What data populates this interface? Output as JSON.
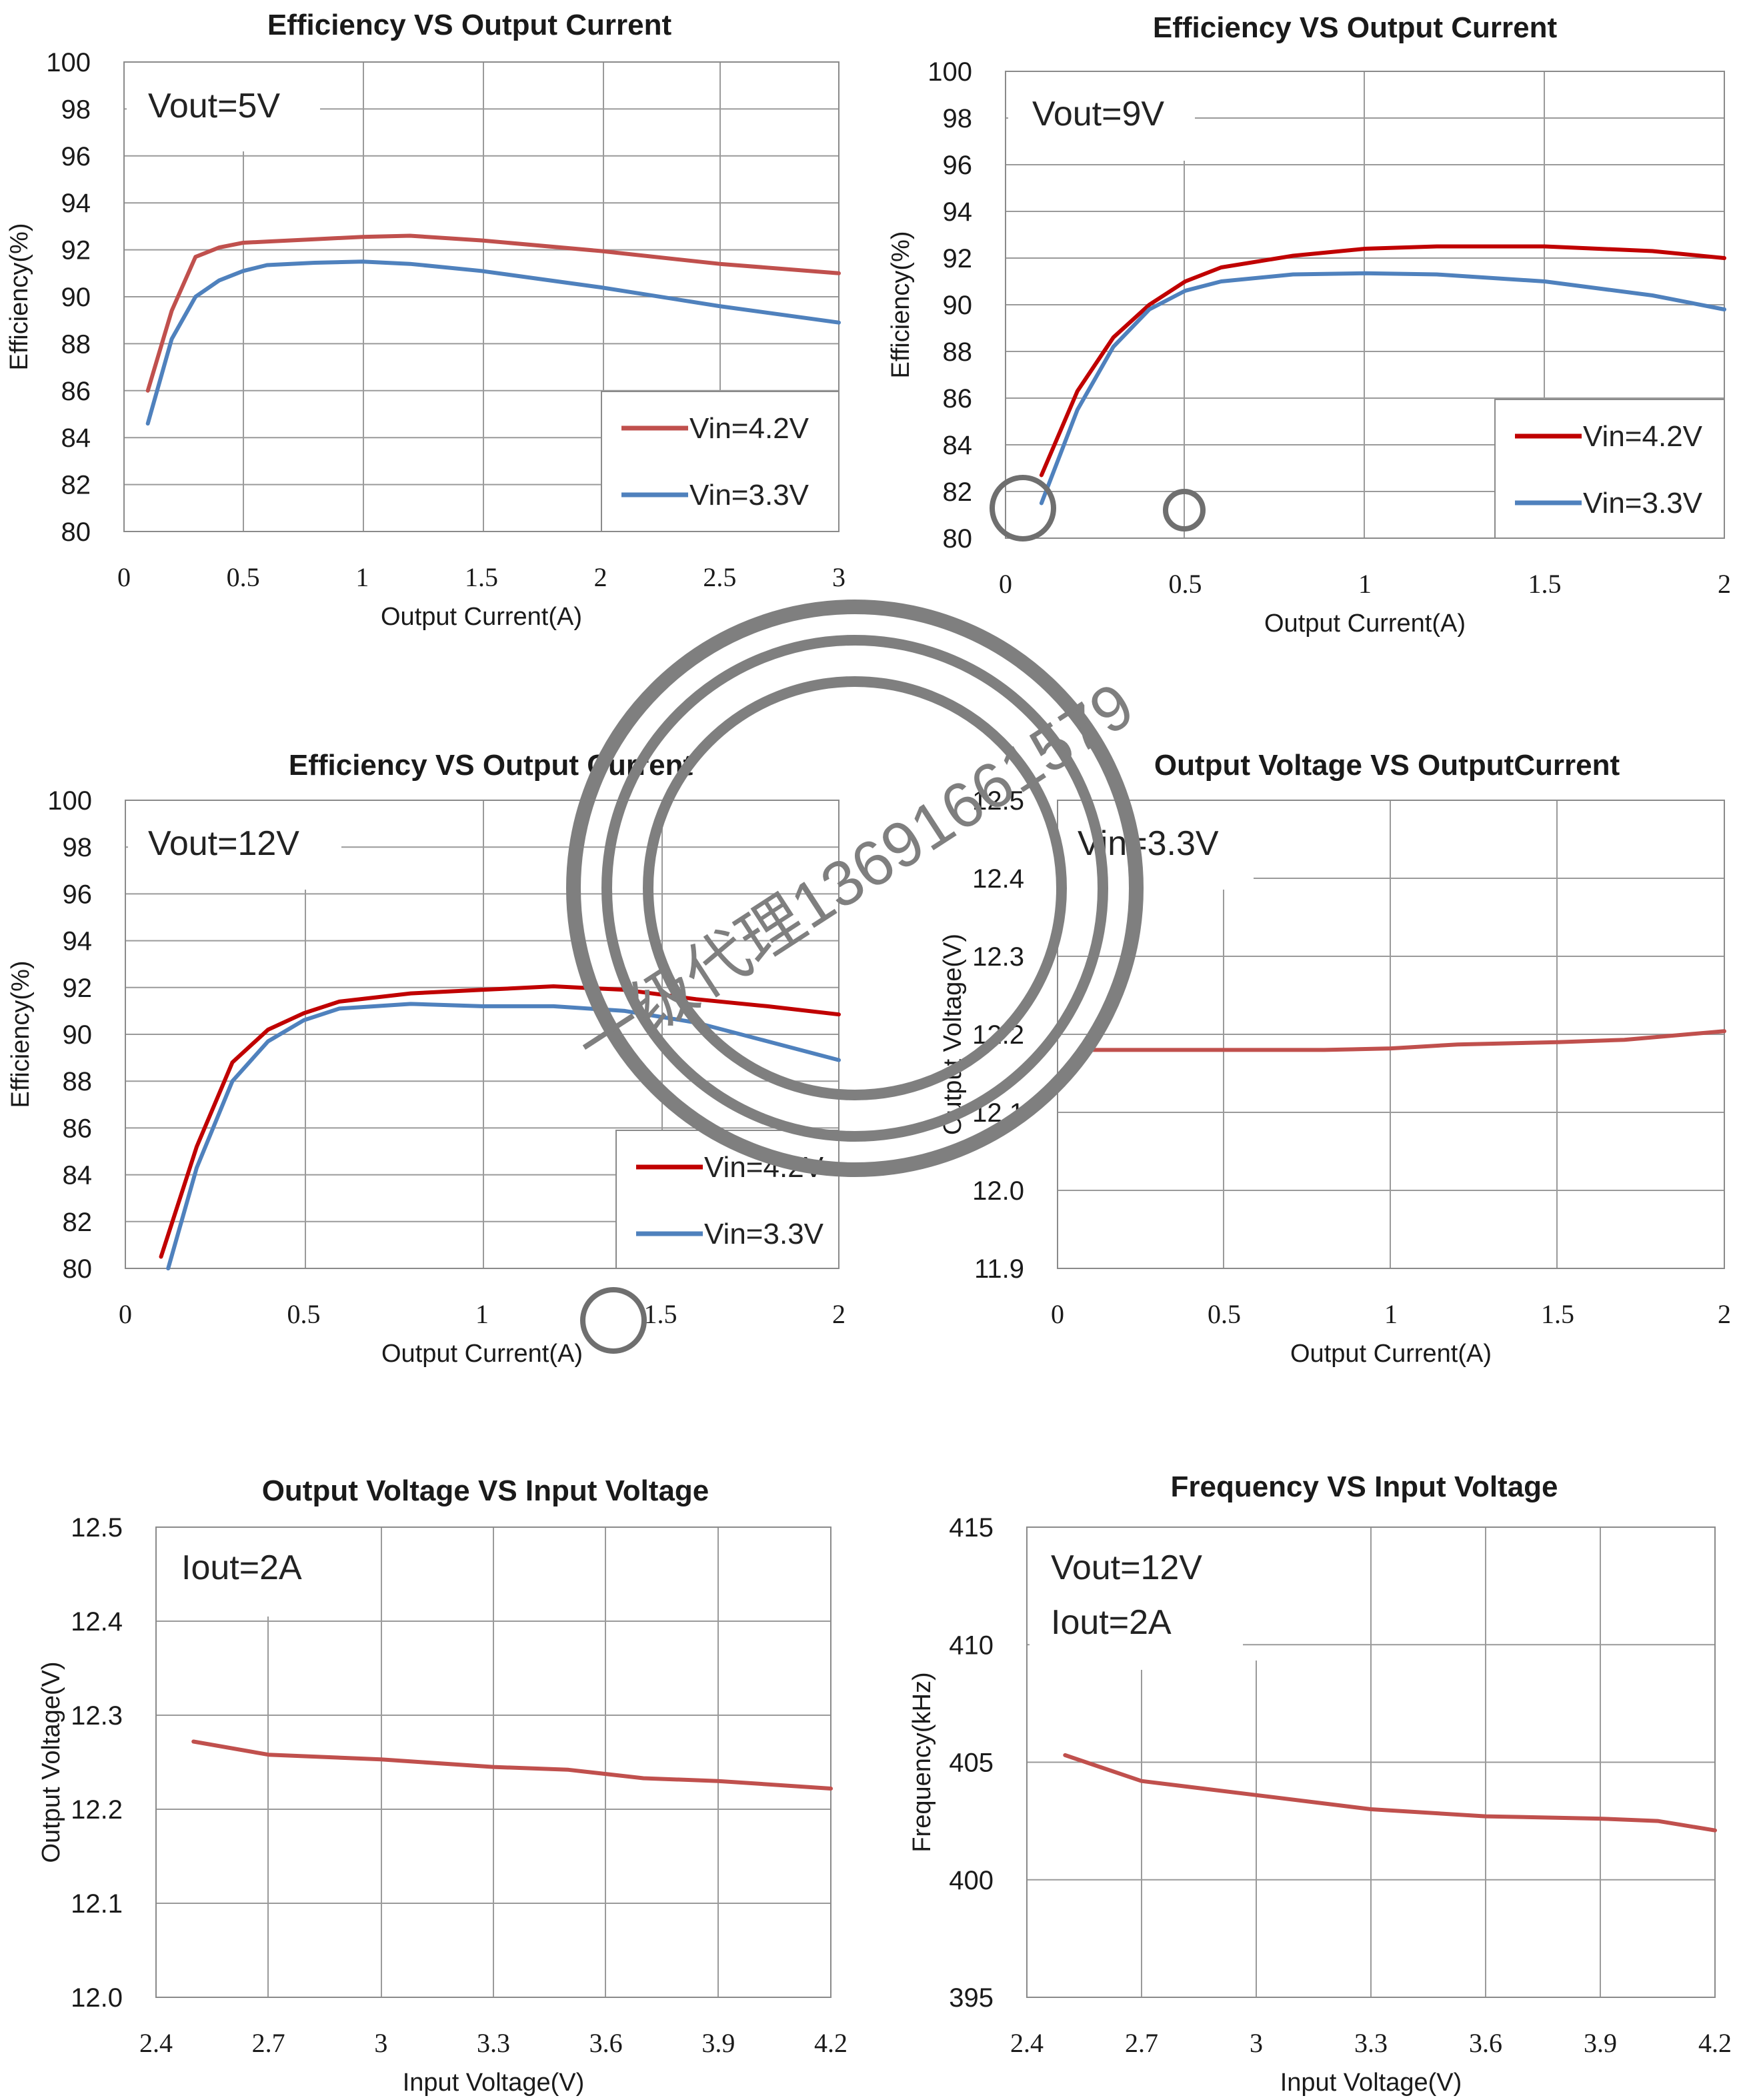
{
  "chart_data": [
    {
      "type": "line",
      "title": "Efficiency VS Output Current",
      "xlabel": "Output Current(A)",
      "ylabel": "Efficiency(%)",
      "xlim": [
        0,
        3
      ],
      "ylim": [
        80,
        100
      ],
      "xticks": [
        "0",
        "0.5",
        "1",
        "1.5",
        "2",
        "2.5",
        "3"
      ],
      "yticks": [
        "80",
        "82",
        "84",
        "86",
        "88",
        "90",
        "92",
        "94",
        "96",
        "98",
        "100"
      ],
      "annotation": [
        "Vout=5V"
      ],
      "legend_position": "bottom-right",
      "grid": true,
      "series": [
        {
          "name": "Vin=4.2V",
          "color": "#c0504d",
          "x": [
            0.1,
            0.2,
            0.3,
            0.4,
            0.5,
            0.6,
            0.8,
            1.0,
            1.2,
            1.5,
            2.0,
            2.5,
            3.0
          ],
          "y": [
            86.0,
            89.4,
            91.7,
            92.1,
            92.3,
            92.35,
            92.45,
            92.55,
            92.6,
            92.4,
            91.95,
            91.4,
            91.0
          ]
        },
        {
          "name": "Vin=3.3V",
          "color": "#4f81bd",
          "x": [
            0.1,
            0.2,
            0.3,
            0.4,
            0.5,
            0.6,
            0.8,
            1.0,
            1.2,
            1.5,
            2.0,
            2.5,
            3.0
          ],
          "y": [
            84.6,
            88.2,
            90.0,
            90.7,
            91.1,
            91.35,
            91.45,
            91.5,
            91.4,
            91.1,
            90.4,
            89.6,
            88.9
          ]
        }
      ]
    },
    {
      "type": "line",
      "title": "Efficiency VS Output Current",
      "xlabel": "Output Current(A)",
      "ylabel": "Efficiency(%)",
      "xlim": [
        0,
        2
      ],
      "ylim": [
        80,
        100
      ],
      "xticks": [
        "0",
        "0.5",
        "1",
        "1.5",
        "2"
      ],
      "yticks": [
        "80",
        "82",
        "84",
        "86",
        "88",
        "90",
        "92",
        "94",
        "96",
        "98",
        "100"
      ],
      "annotation": [
        "Vout=9V"
      ],
      "legend_position": "bottom-right",
      "grid": true,
      "series": [
        {
          "name": "Vin=4.2V",
          "color": "#c00000",
          "x": [
            0.1,
            0.2,
            0.3,
            0.4,
            0.5,
            0.6,
            0.8,
            1.0,
            1.2,
            1.5,
            1.8,
            2.0
          ],
          "y": [
            82.7,
            86.3,
            88.6,
            90.0,
            91.0,
            91.6,
            92.1,
            92.4,
            92.5,
            92.5,
            92.3,
            92.0
          ]
        },
        {
          "name": "Vin=3.3V",
          "color": "#4f81bd",
          "x": [
            0.1,
            0.2,
            0.3,
            0.4,
            0.5,
            0.6,
            0.8,
            1.0,
            1.2,
            1.5,
            1.8,
            2.0
          ],
          "y": [
            81.5,
            85.5,
            88.2,
            89.8,
            90.6,
            91.0,
            91.3,
            91.35,
            91.3,
            91.0,
            90.4,
            89.8
          ]
        }
      ]
    },
    {
      "type": "line",
      "title": "Efficiency VS Output Current",
      "xlabel": "Output Current(A)",
      "ylabel": "Efficiency(%)",
      "xlim": [
        0,
        2
      ],
      "ylim": [
        80,
        100
      ],
      "xticks": [
        "0",
        "0.5",
        "1",
        "1.5",
        "2"
      ],
      "yticks": [
        "80",
        "82",
        "84",
        "86",
        "88",
        "90",
        "92",
        "94",
        "96",
        "98",
        "100"
      ],
      "annotation": [
        "Vout=12V"
      ],
      "legend_position": "bottom-right",
      "grid": true,
      "series": [
        {
          "name": "Vin=4.2V",
          "color": "#c00000",
          "x": [
            0.1,
            0.2,
            0.3,
            0.4,
            0.5,
            0.6,
            0.8,
            1.0,
            1.2,
            1.4,
            1.6,
            1.8,
            2.0
          ],
          "y": [
            80.5,
            85.2,
            88.8,
            90.2,
            90.9,
            91.4,
            91.75,
            91.9,
            92.05,
            91.9,
            91.5,
            91.2,
            90.85
          ]
        },
        {
          "name": "Vin=3.3V",
          "color": "#4f81bd",
          "x": [
            0.12,
            0.2,
            0.3,
            0.4,
            0.5,
            0.6,
            0.8,
            1.0,
            1.2,
            1.4,
            1.6,
            1.8,
            2.0
          ],
          "y": [
            80.0,
            84.3,
            88.0,
            89.7,
            90.6,
            91.1,
            91.3,
            91.2,
            91.2,
            91.0,
            90.5,
            89.7,
            88.9
          ]
        }
      ]
    },
    {
      "type": "line",
      "title": "Output Voltage VS OutputCurrent",
      "xlabel": "Output Current(A)",
      "ylabel": "Output Voltage(V)",
      "xlim": [
        0,
        2
      ],
      "ylim": [
        11.9,
        12.5
      ],
      "xticks": [
        "0",
        "0.5",
        "1",
        "1.5",
        "2"
      ],
      "yticks": [
        "11.9",
        "12.0",
        "12.1",
        "12.2",
        "12.3",
        "12.4",
        "12.5"
      ],
      "annotation": [
        "Vin=3.3V"
      ],
      "grid": true,
      "series": [
        {
          "color": "#c0504d",
          "x": [
            0.1,
            0.5,
            0.8,
            1.0,
            1.2,
            1.5,
            1.7,
            2.0
          ],
          "y": [
            12.18,
            12.18,
            12.18,
            12.182,
            12.187,
            12.19,
            12.193,
            12.204
          ]
        }
      ]
    },
    {
      "type": "line",
      "title": "Output Voltage VS Input Voltage",
      "xlabel": "Input Voltage(V)",
      "ylabel": "Output Voltage(V)",
      "xlim": [
        2.4,
        4.2
      ],
      "ylim": [
        12.0,
        12.5
      ],
      "xticks": [
        "2.4",
        "2.7",
        "3",
        "3.3",
        "3.6",
        "3.9",
        "4.2"
      ],
      "yticks": [
        "12.0",
        "12.1",
        "12.2",
        "12.3",
        "12.4",
        "12.5"
      ],
      "annotation": [
        "Iout=2A"
      ],
      "grid": true,
      "series": [
        {
          "color": "#c0504d",
          "x": [
            2.5,
            2.7,
            3.0,
            3.3,
            3.5,
            3.7,
            3.9,
            4.2
          ],
          "y": [
            12.272,
            12.258,
            12.253,
            12.245,
            12.242,
            12.233,
            12.23,
            12.222
          ]
        }
      ]
    },
    {
      "type": "line",
      "title": "Frequency VS Input Voltage",
      "xlabel": "Input Voltage(V)",
      "ylabel": "Frequency(kHz)",
      "xlim": [
        2.4,
        4.2
      ],
      "ylim": [
        395,
        415
      ],
      "xticks": [
        "2.4",
        "2.7",
        "3",
        "3.3",
        "3.6",
        "3.9",
        "4.2"
      ],
      "yticks": [
        "395",
        "400",
        "405",
        "410",
        "415"
      ],
      "annotation": [
        "Vout=12V",
        "Iout=2A"
      ],
      "grid": true,
      "series": [
        {
          "color": "#c0504d",
          "x": [
            2.5,
            2.7,
            3.0,
            3.3,
            3.6,
            3.9,
            4.05,
            4.2
          ],
          "y": [
            405.3,
            404.2,
            403.6,
            403.0,
            402.7,
            402.6,
            402.5,
            402.1
          ]
        }
      ]
    }
  ],
  "watermark": {
    "text": "一级代理13691661579"
  }
}
